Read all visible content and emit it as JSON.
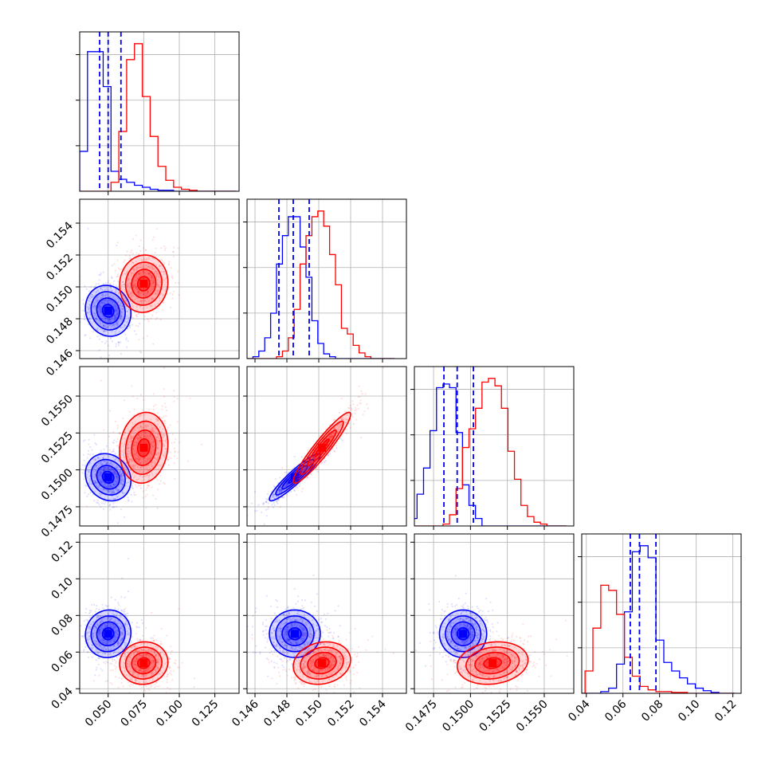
{
  "chart_data": {
    "type": "corner",
    "parameters": 4,
    "grid": true,
    "series": [
      {
        "name": "",
        "color": "#0000ff",
        "mean": [
          0.05,
          0.1485,
          0.1495,
          0.07
        ],
        "sd": [
          0.008,
          0.0008,
          0.0008,
          0.0065
        ],
        "correlations": {
          "0-1": -0.1,
          "0-2": -0.15,
          "0-3": 0.05,
          "1-2": 0.93,
          "1-3": 0.0,
          "2-3": 0.0
        },
        "quantile_lines": [
          [
            0.044,
            0.05,
            0.059
          ],
          [
            0.1475,
            0.1484,
            0.1494
          ],
          [
            0.1482,
            0.1491,
            0.1502
          ],
          [
            0.064,
            0.069,
            0.078
          ]
        ]
      },
      {
        "name": "",
        "color": "#ff0000",
        "mean": [
          0.075,
          0.1502,
          0.1515,
          0.054
        ],
        "sd": [
          0.0085,
          0.0009,
          0.0012,
          0.0058
        ],
        "correlations": {
          "0-1": 0.05,
          "0-2": 0.1,
          "0-3": 0.05,
          "1-2": 0.94,
          "1-3": 0.15,
          "2-3": 0.15
        }
      }
    ],
    "histograms": {
      "p0": {
        "edges": [
          0.03,
          0.0355,
          0.041,
          0.0465,
          0.052,
          0.0575,
          0.063,
          0.0685,
          0.074,
          0.0795,
          0.085,
          0.0905,
          0.096,
          0.1015,
          0.107,
          0.1125,
          0.118,
          0.1235,
          0.129,
          0.1345,
          0.14
        ],
        "blue": [
          40,
          140,
          140,
          105,
          20,
          12,
          9,
          6,
          4,
          2,
          1,
          1,
          0,
          0,
          0,
          0,
          0,
          0,
          0,
          0
        ],
        "red": [
          0,
          0,
          0,
          0,
          9,
          60,
          132,
          148,
          95,
          55,
          25,
          11,
          4,
          2,
          1,
          0,
          0,
          0,
          0,
          0
        ]
      },
      "p1": {
        "edges": [
          0.1455,
          0.14587,
          0.14624,
          0.14661,
          0.14698,
          0.14735,
          0.14772,
          0.14809,
          0.14846,
          0.14883,
          0.1492,
          0.14957,
          0.14994,
          0.15031,
          0.15068,
          0.15105,
          0.15142,
          0.15179,
          0.15216,
          0.15253,
          0.1529,
          0.15327,
          0.15364,
          0.15401,
          0.15438,
          0.15475
        ],
        "blue": [
          0,
          2,
          8,
          22,
          48,
          100,
          130,
          150,
          150,
          118,
          86,
          40,
          16,
          5,
          2,
          0,
          0,
          0,
          0,
          0,
          0,
          0,
          0,
          0,
          0
        ],
        "red": [
          0,
          0,
          0,
          0,
          0,
          2,
          8,
          22,
          52,
          100,
          130,
          150,
          156,
          140,
          110,
          78,
          32,
          26,
          14,
          6,
          2,
          0,
          0,
          0,
          0
        ]
      },
      "p2": {
        "edges": [
          0.1455,
          0.14594,
          0.14638,
          0.14682,
          0.14726,
          0.1477,
          0.14814,
          0.14858,
          0.14902,
          0.14946,
          0.1499,
          0.15034,
          0.15078,
          0.15122,
          0.15166,
          0.1521,
          0.15254,
          0.15298,
          0.15342,
          0.15386,
          0.1543,
          0.15474,
          0.15518,
          0.15562,
          0.15606,
          0.1565
        ],
        "blue": [
          0,
          8,
          34,
          62,
          102,
          148,
          152,
          148,
          100,
          44,
          22,
          8,
          0,
          0,
          0,
          0,
          0,
          0,
          0,
          0,
          0,
          0,
          0,
          0,
          0
        ],
        "red": [
          0,
          0,
          0,
          0,
          0,
          0,
          2,
          12,
          40,
          84,
          104,
          126,
          154,
          158,
          150,
          126,
          80,
          50,
          22,
          10,
          4,
          2,
          0,
          0,
          0
        ]
      },
      "p3": {
        "edges": [
          0.035,
          0.0393,
          0.0436,
          0.0479,
          0.0522,
          0.0565,
          0.0608,
          0.0651,
          0.0694,
          0.0737,
          0.078,
          0.0823,
          0.0866,
          0.0909,
          0.0952,
          0.0995,
          0.1038,
          0.1081,
          0.1124,
          0.1167,
          0.121
        ],
        "blue": [
          0,
          0,
          0,
          2,
          6,
          34,
          95,
          165,
          172,
          158,
          62,
          36,
          26,
          18,
          11,
          6,
          3,
          1,
          0,
          0
        ],
        "red": [
          0,
          26,
          76,
          126,
          120,
          92,
          42,
          20,
          8,
          4,
          2,
          2,
          1,
          1,
          0,
          0,
          0,
          0,
          0,
          0
        ]
      }
    },
    "axes": [
      {
        "range": [
          0.03,
          0.142
        ],
        "ticks": [
          0.05,
          0.075,
          0.1,
          0.125
        ],
        "labels": [
          "0.050",
          "0.075",
          "0.100",
          "0.125"
        ]
      },
      {
        "range": [
          0.1455,
          0.1555
        ],
        "ticks": [
          0.146,
          0.148,
          0.15,
          0.152,
          0.154
        ],
        "labels": [
          "0.146",
          "0.148",
          "0.150",
          "0.152",
          "0.154"
        ]
      },
      {
        "range": [
          0.1462,
          0.157
        ],
        "ticks": [
          0.1475,
          0.15,
          0.1525,
          0.155
        ],
        "labels": [
          "0.1475",
          "0.1500",
          "0.1525",
          "0.1550"
        ]
      },
      {
        "range": [
          0.0375,
          0.1245
        ],
        "ticks": [
          0.04,
          0.06,
          0.08,
          0.1,
          0.12
        ],
        "labels": [
          "0.04",
          "0.06",
          "0.08",
          "0.10",
          "0.12"
        ]
      }
    ]
  }
}
